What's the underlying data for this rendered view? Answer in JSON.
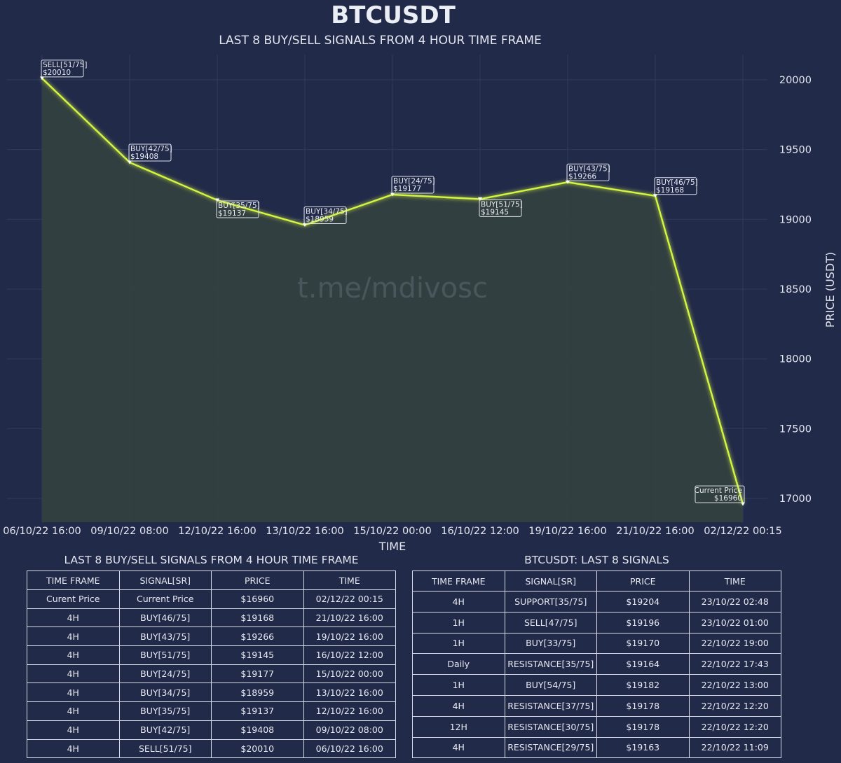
{
  "chart_data": {
    "type": "line",
    "title": "BTCUSDT",
    "subtitle": "LAST 8 BUY/SELL SIGNALS FROM 4 HOUR TIME FRAME",
    "xlabel": "TIME",
    "ylabel": "PRICE (USDT)",
    "watermark": "t.me/mdivosc",
    "ylim": [
      16830,
      20180
    ],
    "yticks": [
      17000,
      17500,
      18000,
      18500,
      19000,
      19500,
      20000
    ],
    "grid": true,
    "categories": [
      "06/10/22 16:00",
      "09/10/22 08:00",
      "12/10/22 16:00",
      "13/10/22 16:00",
      "15/10/22 00:00",
      "16/10/22 12:00",
      "19/10/22 16:00",
      "21/10/22 16:00",
      "02/12/22 00:15"
    ],
    "values": [
      20010,
      19408,
      19137,
      18959,
      19177,
      19145,
      19266,
      19168,
      16960
    ],
    "annotations": [
      {
        "label": "SELL[51/75]",
        "price": "$20010"
      },
      {
        "label": "BUY[42/75]",
        "price": "$19408"
      },
      {
        "label": "BUY[35/75]",
        "price": "$19137"
      },
      {
        "label": "BUY[34/75]",
        "price": "$18959"
      },
      {
        "label": "BUY[24/75]",
        "price": "$19177"
      },
      {
        "label": "BUY[51/75]",
        "price": "$19145"
      },
      {
        "label": "BUY[43/75]",
        "price": "$19266"
      },
      {
        "label": "BUY[46/75]",
        "price": "$19168"
      },
      {
        "label": "Current Price",
        "price": "$16960"
      }
    ],
    "colors": {
      "line": "#d4f542",
      "fill": "#34403f",
      "background": "#222a4a",
      "grid": "#2e3b5e"
    }
  },
  "table_left": {
    "title": "LAST 8 BUY/SELL SIGNALS FROM 4 HOUR TIME FRAME",
    "headers": [
      "TIME FRAME",
      "SIGNAL[SR]",
      "PRICE",
      "TIME"
    ],
    "rows": [
      [
        "Curent Price",
        "Current Price",
        "$16960",
        "02/12/22 00:15"
      ],
      [
        "4H",
        "BUY[46/75]",
        "$19168",
        "21/10/22 16:00"
      ],
      [
        "4H",
        "BUY[43/75]",
        "$19266",
        "19/10/22 16:00"
      ],
      [
        "4H",
        "BUY[51/75]",
        "$19145",
        "16/10/22 12:00"
      ],
      [
        "4H",
        "BUY[24/75]",
        "$19177",
        "15/10/22 00:00"
      ],
      [
        "4H",
        "BUY[34/75]",
        "$18959",
        "13/10/22 16:00"
      ],
      [
        "4H",
        "BUY[35/75]",
        "$19137",
        "12/10/22 16:00"
      ],
      [
        "4H",
        "BUY[42/75]",
        "$19408",
        "09/10/22 08:00"
      ],
      [
        "4H",
        "SELL[51/75]",
        "$20010",
        "06/10/22 16:00"
      ]
    ]
  },
  "table_right": {
    "title": "BTCUSDT: LAST 8 SIGNALS",
    "headers": [
      "TIME FRAME",
      "SIGNAL[SR]",
      "PRICE",
      "TIME"
    ],
    "rows": [
      [
        "4H",
        "SUPPORT[35/75]",
        "$19204",
        "23/10/22 02:48"
      ],
      [
        "1H",
        "SELL[47/75]",
        "$19196",
        "23/10/22 01:00"
      ],
      [
        "1H",
        "BUY[33/75]",
        "$19170",
        "22/10/22 19:00"
      ],
      [
        "Daily",
        "RESISTANCE[35/75]",
        "$19164",
        "22/10/22 17:43"
      ],
      [
        "1H",
        "BUY[54/75]",
        "$19182",
        "22/10/22 13:00"
      ],
      [
        "4H",
        "RESISTANCE[37/75]",
        "$19178",
        "22/10/22 12:20"
      ],
      [
        "12H",
        "RESISTANCE[30/75]",
        "$19178",
        "22/10/22 12:20"
      ],
      [
        "4H",
        "RESISTANCE[29/75]",
        "$19163",
        "22/10/22 11:09"
      ]
    ]
  }
}
